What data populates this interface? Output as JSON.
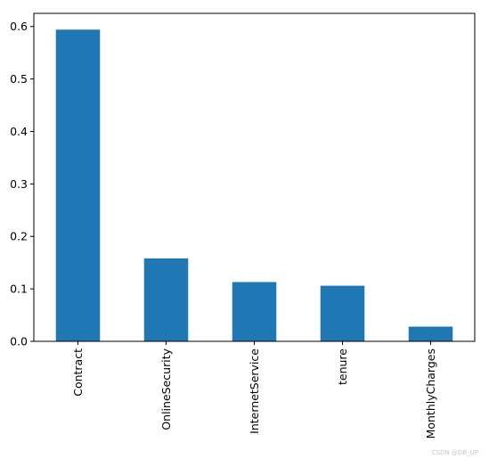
{
  "chart_data": {
    "type": "bar",
    "categories": [
      "Contract",
      "OnlineSecurity",
      "InternetService",
      "tenure",
      "MonthlyCharges"
    ],
    "values": [
      0.594,
      0.158,
      0.113,
      0.106,
      0.028
    ],
    "ylim": [
      0,
      0.625
    ],
    "yticks": [
      0.0,
      0.1,
      0.2,
      0.3,
      0.4,
      0.5,
      0.6
    ],
    "ytick_labels": [
      "0.0",
      "0.1",
      "0.2",
      "0.3",
      "0.4",
      "0.5",
      "0.6"
    ],
    "bar_color": "#1f77b4",
    "xtick_rotation": "vertical",
    "grid": false,
    "title": "",
    "xlabel": "",
    "ylabel": ""
  },
  "watermark": "CSDN @DB_UP"
}
